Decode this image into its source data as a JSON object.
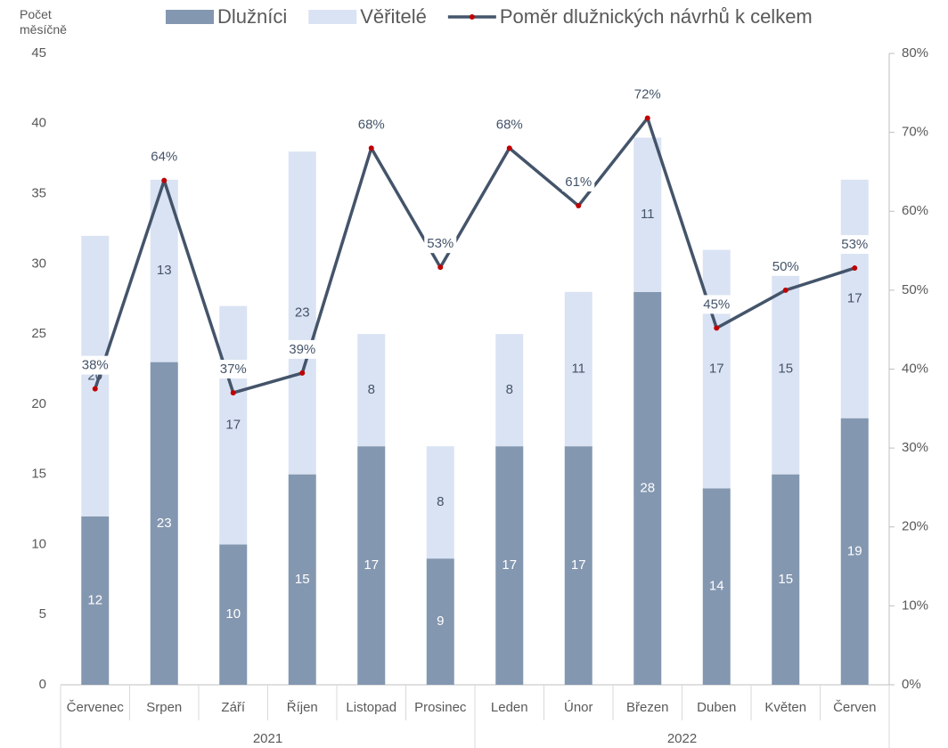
{
  "chart_data": {
    "type": "bar",
    "stacked": true,
    "y_label": "Počet měsíčně",
    "categories": [
      "Červenec",
      "Srpen",
      "Září",
      "Říjen",
      "Listopad",
      "Prosinec",
      "Leden",
      "Únor",
      "Březen",
      "Duben",
      "Květen",
      "Červen"
    ],
    "groups": [
      {
        "label": "2021",
        "size": 6
      },
      {
        "label": "2022",
        "size": 6
      }
    ],
    "series": [
      {
        "name": "Dlužníci",
        "color": "#8497b0",
        "label_color": "#ffffff",
        "values": [
          12,
          23,
          10,
          15,
          17,
          9,
          17,
          17,
          28,
          14,
          15,
          19
        ]
      },
      {
        "name": "Věřitelé",
        "color": "#dae3f3",
        "label_color": "#44546a",
        "values": [
          20,
          13,
          17,
          23,
          8,
          8,
          8,
          11,
          11,
          17,
          15,
          17
        ]
      },
      {
        "name": "Poměr dlužnických návrhů k celkem",
        "type": "line",
        "axis": "y2",
        "color": "#44546a",
        "marker_color": "#c00000",
        "values": [
          37.5,
          63.9,
          37.0,
          39.5,
          68.0,
          52.9,
          68.0,
          60.7,
          71.8,
          45.2,
          50.0,
          52.8
        ],
        "value_labels": [
          "38%",
          "64%",
          "37%",
          "39%",
          "68%",
          "53%",
          "68%",
          "61%",
          "72%",
          "45%",
          "50%",
          "53%"
        ]
      }
    ],
    "ylim": [
      0,
      45
    ],
    "yticks": [
      0,
      5,
      10,
      15,
      20,
      25,
      30,
      35,
      40,
      45
    ],
    "y2lim": [
      0,
      80
    ],
    "y2ticks": [
      {
        "value": 0,
        "label": "0%"
      },
      {
        "value": 10,
        "label": "10%"
      },
      {
        "value": 20,
        "label": "20%"
      },
      {
        "value": 30,
        "label": "30%"
      },
      {
        "value": 40,
        "label": "40%"
      },
      {
        "value": 50,
        "label": "50%"
      },
      {
        "value": 60,
        "label": "60%"
      },
      {
        "value": 70,
        "label": "70%"
      },
      {
        "value": 80,
        "label": "80%"
      }
    ],
    "grid": false,
    "legend": "top"
  }
}
